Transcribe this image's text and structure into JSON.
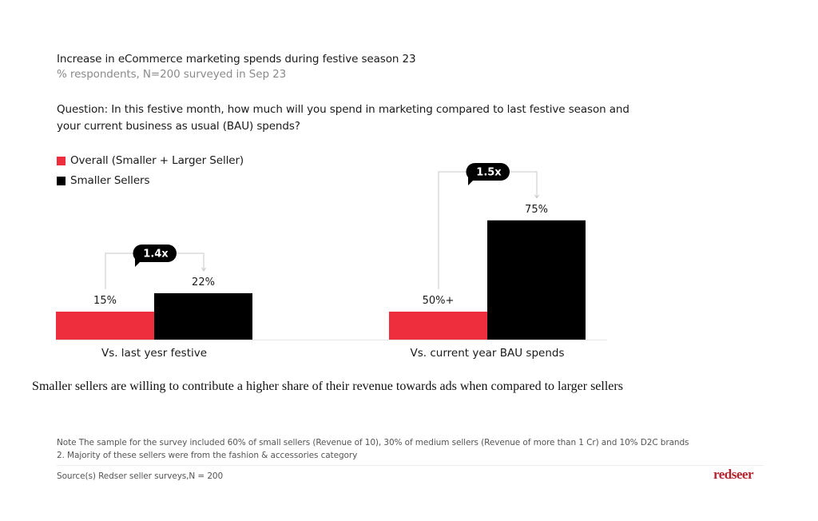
{
  "header": {
    "title": "Increase in eCommerce marketing spends during festive season 23",
    "subtitle": "% respondents, N=200 surveyed in Sep 23",
    "question": "Question: In this festive month, how much will you spend in marketing compared to last festive season and your current business as usual (BAU) spends?"
  },
  "colors": {
    "overall": "#EE2E3C",
    "smaller": "#000000",
    "bracket": "#c8c8c8",
    "callout_bg": "#000000",
    "callout_text": "#ffffff",
    "brand": "#b5252f"
  },
  "chart_data": {
    "type": "bar",
    "title": "Increase in eCommerce marketing spends during festive season 23",
    "subtitle": "% respondents, N=200 surveyed in Sep 23",
    "xlabel": "",
    "ylabel": "",
    "grid": false,
    "legend_position": "top-left",
    "categories": [
      "Vs. last yesr festive",
      "Vs. current year BAU spends"
    ],
    "series": [
      {
        "name": "Overall (Smaller + Larger Seller)",
        "values": [
          15,
          50
        ],
        "labels": [
          "15%",
          "50%+"
        ]
      },
      {
        "name": "Smaller Sellers",
        "values": [
          22,
          75
        ],
        "labels": [
          "22%",
          "75%"
        ]
      }
    ],
    "annotations": [
      {
        "category": "Vs. last yesr festive",
        "text": "1.4x"
      },
      {
        "category": "Vs. current year BAU spends",
        "text": "1.5x"
      }
    ]
  },
  "takeaway": "Smaller sellers are willing to contribute a higher share of their revenue towards ads when compared to larger sellers",
  "footer": {
    "note_line1": "Note The sample for the survey included 60% of small sellers (Revenue of 10), 30% of medium sellers (Revenue of more than 1 Cr) and 10% D2C brands",
    "note_line2": "2. Majority of these sellers were from the fashion & accessories category",
    "source": "Source(s) Redser seller surveys,N =  200",
    "logo": "redseer"
  }
}
